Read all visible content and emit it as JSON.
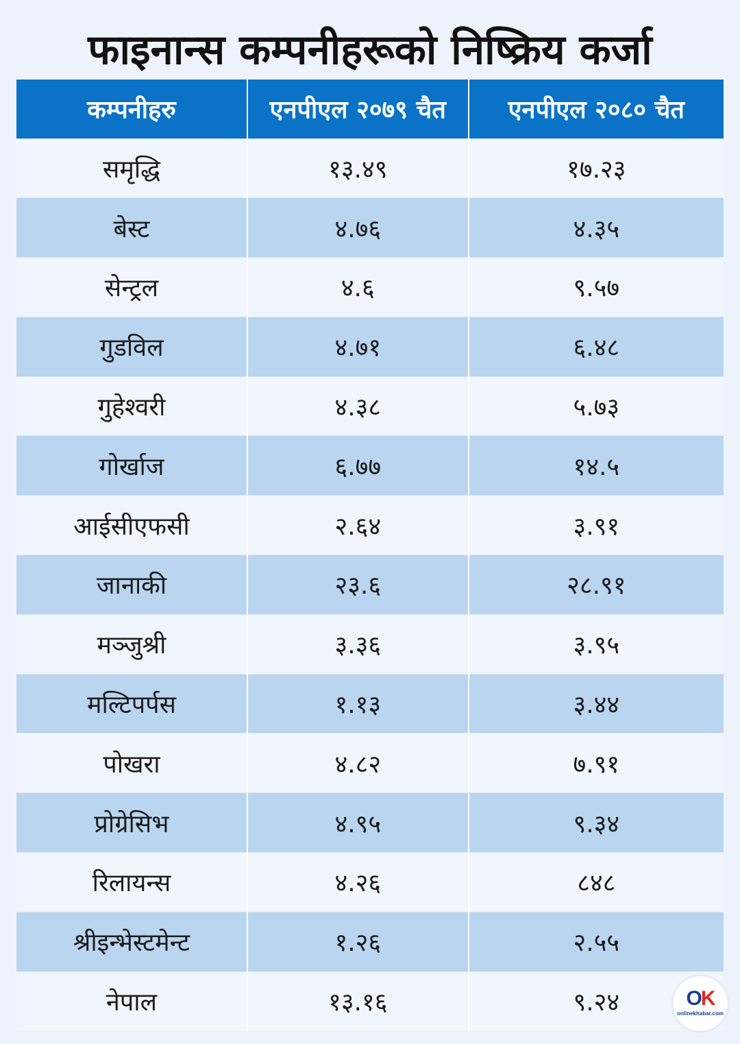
{
  "title": "फाइनान्स कम्पनीहरूको निष्क्रिय कर्जा",
  "table": {
    "headers": [
      "कम्पनीहरु",
      "एनपीएल २०७९ चैत",
      "एनपीएल २०८० चैत"
    ],
    "rows": [
      [
        "समृद्धि",
        "१३.४९",
        "१७.२३"
      ],
      [
        "बेस्ट",
        "४.७६",
        "४.३५"
      ],
      [
        "सेन्ट्रल",
        "४.६",
        "९.५७"
      ],
      [
        "गुडविल",
        "४.७१",
        "६.४८"
      ],
      [
        "गुहेश्वरी",
        "४.३८",
        "५.७३"
      ],
      [
        "गोर्खाज",
        "६.७७",
        "१४.५"
      ],
      [
        "आईसीएफसी",
        "२.६४",
        "३.९१"
      ],
      [
        "जानाकी",
        "२३.६",
        "२८.९१"
      ],
      [
        "मञ्जुश्री",
        "३.३६",
        "३.९५"
      ],
      [
        "मल्टिपर्पस",
        "१.१३",
        "३.४४"
      ],
      [
        "पोखरा",
        "४.८२",
        "७.९१"
      ],
      [
        "प्रोग्रेसिभ",
        "४.९५",
        "९.३४"
      ],
      [
        "रिलायन्स",
        "४.२६",
        "८४८"
      ],
      [
        "श्रीइन्भेस्टमेन्ट",
        "१.२६",
        "२.५५"
      ],
      [
        "नेपाल",
        "१३.१६",
        "९.२४"
      ]
    ]
  },
  "logo": {
    "mark_o": "O",
    "mark_k": "K",
    "text": "onlinekhabar.com",
    "brand_red": "#e1261c",
    "brand_blue": "#1b3f8f"
  },
  "colors": {
    "header_bg": "#0a73c7",
    "row_light": "#f1f5fc",
    "row_dark": "#b9d5ef"
  }
}
